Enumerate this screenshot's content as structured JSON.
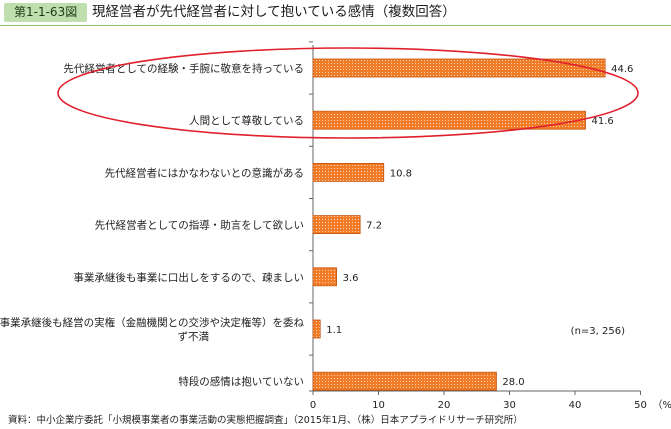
{
  "header": {
    "figure_number": "第1-1-63図",
    "title": "現経営者が先代経営者に対して抱いている感情（複数回答）"
  },
  "chart_data": {
    "type": "bar",
    "orientation": "horizontal",
    "categories": [
      "先代経営者としての経験・手腕に敬意を持っている",
      "人間として尊敬している",
      "先代経営者にはかなわないとの意識がある",
      "先代経営者としての指導・助言をして欲しい",
      "事業承継後も事業に口出しをするので、疎ましい",
      "事業承継後も経営の実権（金融機関との交渉や決定権等）を委ね|ず不満",
      "特段の感情は抱いていない"
    ],
    "values": [
      44.6,
      41.6,
      10.8,
      7.2,
      3.6,
      1.1,
      28.0
    ],
    "value_labels": [
      "44.6",
      "41.6",
      "10.8",
      "7.2",
      "3.6",
      "1.1",
      "28.0"
    ],
    "x_ticks": [
      "0",
      "10",
      "20",
      "30",
      "40",
      "50"
    ],
    "x_unit": "（%）",
    "xlim": [
      0,
      50
    ],
    "grid": false,
    "annotation": "(n=3, 256)",
    "highlight": "ellipse around first two bars",
    "colors": {
      "bar_fill": "#f07c28",
      "bar_dot": "#fde4cc",
      "bar_stroke": "#c4520e",
      "highlight": "#e0202c"
    }
  },
  "source": "資料：中小企業庁委託「小規模事業者の事業活動の実態把握調査」（2015年1月、（株）日本アプライドリサーチ研究所）"
}
